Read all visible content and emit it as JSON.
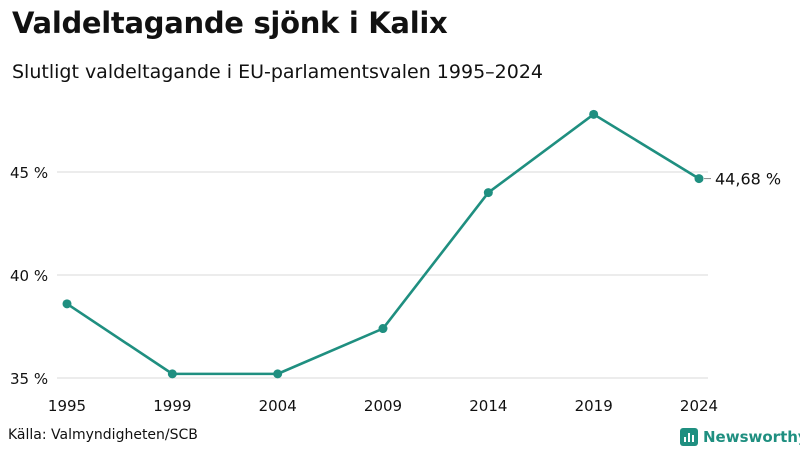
{
  "header": {
    "title": "Valdeltagande sjönk i Kalix",
    "subtitle": "Slutligt valdeltagande i EU-parlamentsvalen 1995–2024"
  },
  "footer": {
    "source": "Källa: Valmyndigheten/SCB",
    "brand": "Newsworthy",
    "brand_icon": "bar-chart-logo-icon"
  },
  "colors": {
    "line": "#1f8f80",
    "grid": "#d9d9d9",
    "brand": "#1f8f80"
  },
  "chart_data": {
    "type": "line",
    "title": "Valdeltagande sjönk i Kalix",
    "subtitle": "Slutligt valdeltagande i EU-parlamentsvalen 1995–2024",
    "xlabel": "",
    "ylabel": "",
    "x": [
      "1995",
      "1999",
      "2004",
      "2009",
      "2014",
      "2019",
      "2024"
    ],
    "series": [
      {
        "values": [
          38.6,
          35.2,
          35.2,
          37.4,
          44.0,
          47.8,
          44.68
        ]
      }
    ],
    "yticks": [
      35,
      40,
      45
    ],
    "ytick_labels": [
      "35 %",
      "40 %",
      "45 %"
    ],
    "ylim": [
      35,
      47.8
    ],
    "end_label": "44,68 %",
    "grid": true
  }
}
